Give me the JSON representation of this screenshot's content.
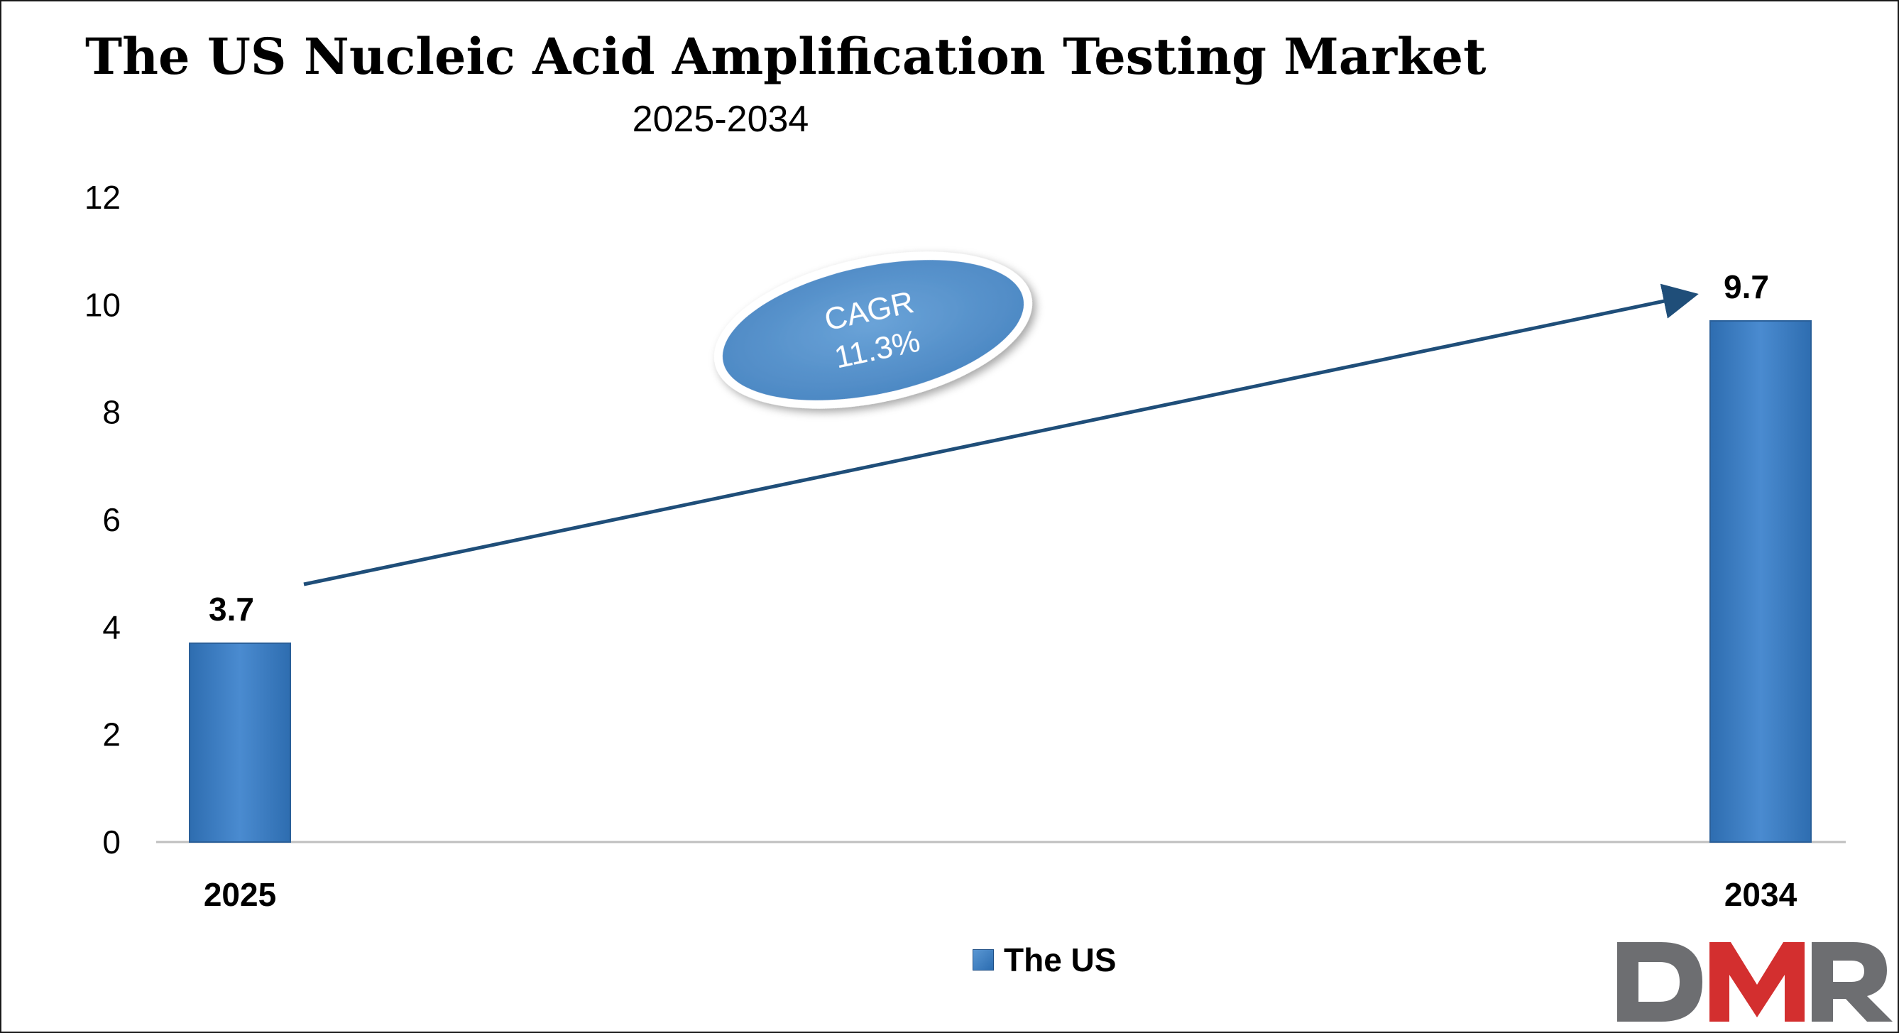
{
  "chart_data": {
    "type": "bar",
    "title": "The US Nucleic Acid Amplification Testing Market",
    "subtitle": "2025-2034",
    "categories": [
      "2025",
      "2034"
    ],
    "series": [
      {
        "name": "The US",
        "values": [
          3.7,
          9.7
        ]
      }
    ],
    "data_labels": [
      "3.7",
      "9.7"
    ],
    "ylim": [
      0,
      12
    ],
    "yticks": [
      0,
      2,
      4,
      6,
      8,
      10,
      12
    ],
    "ytick_labels": [
      "0",
      "2",
      "4",
      "6",
      "8",
      "10",
      "12"
    ],
    "grid": false,
    "legend_position": "bottom-center",
    "annotation": {
      "line1": "CAGR",
      "line2": "11.3%"
    },
    "bar_color": "#3b7dc4",
    "arrow_color": "#1f4e79"
  },
  "logo": {
    "text": "DMR",
    "color_d": "#6d6e71",
    "color_m": "#d32f2f",
    "color_r": "#6d6e71"
  }
}
